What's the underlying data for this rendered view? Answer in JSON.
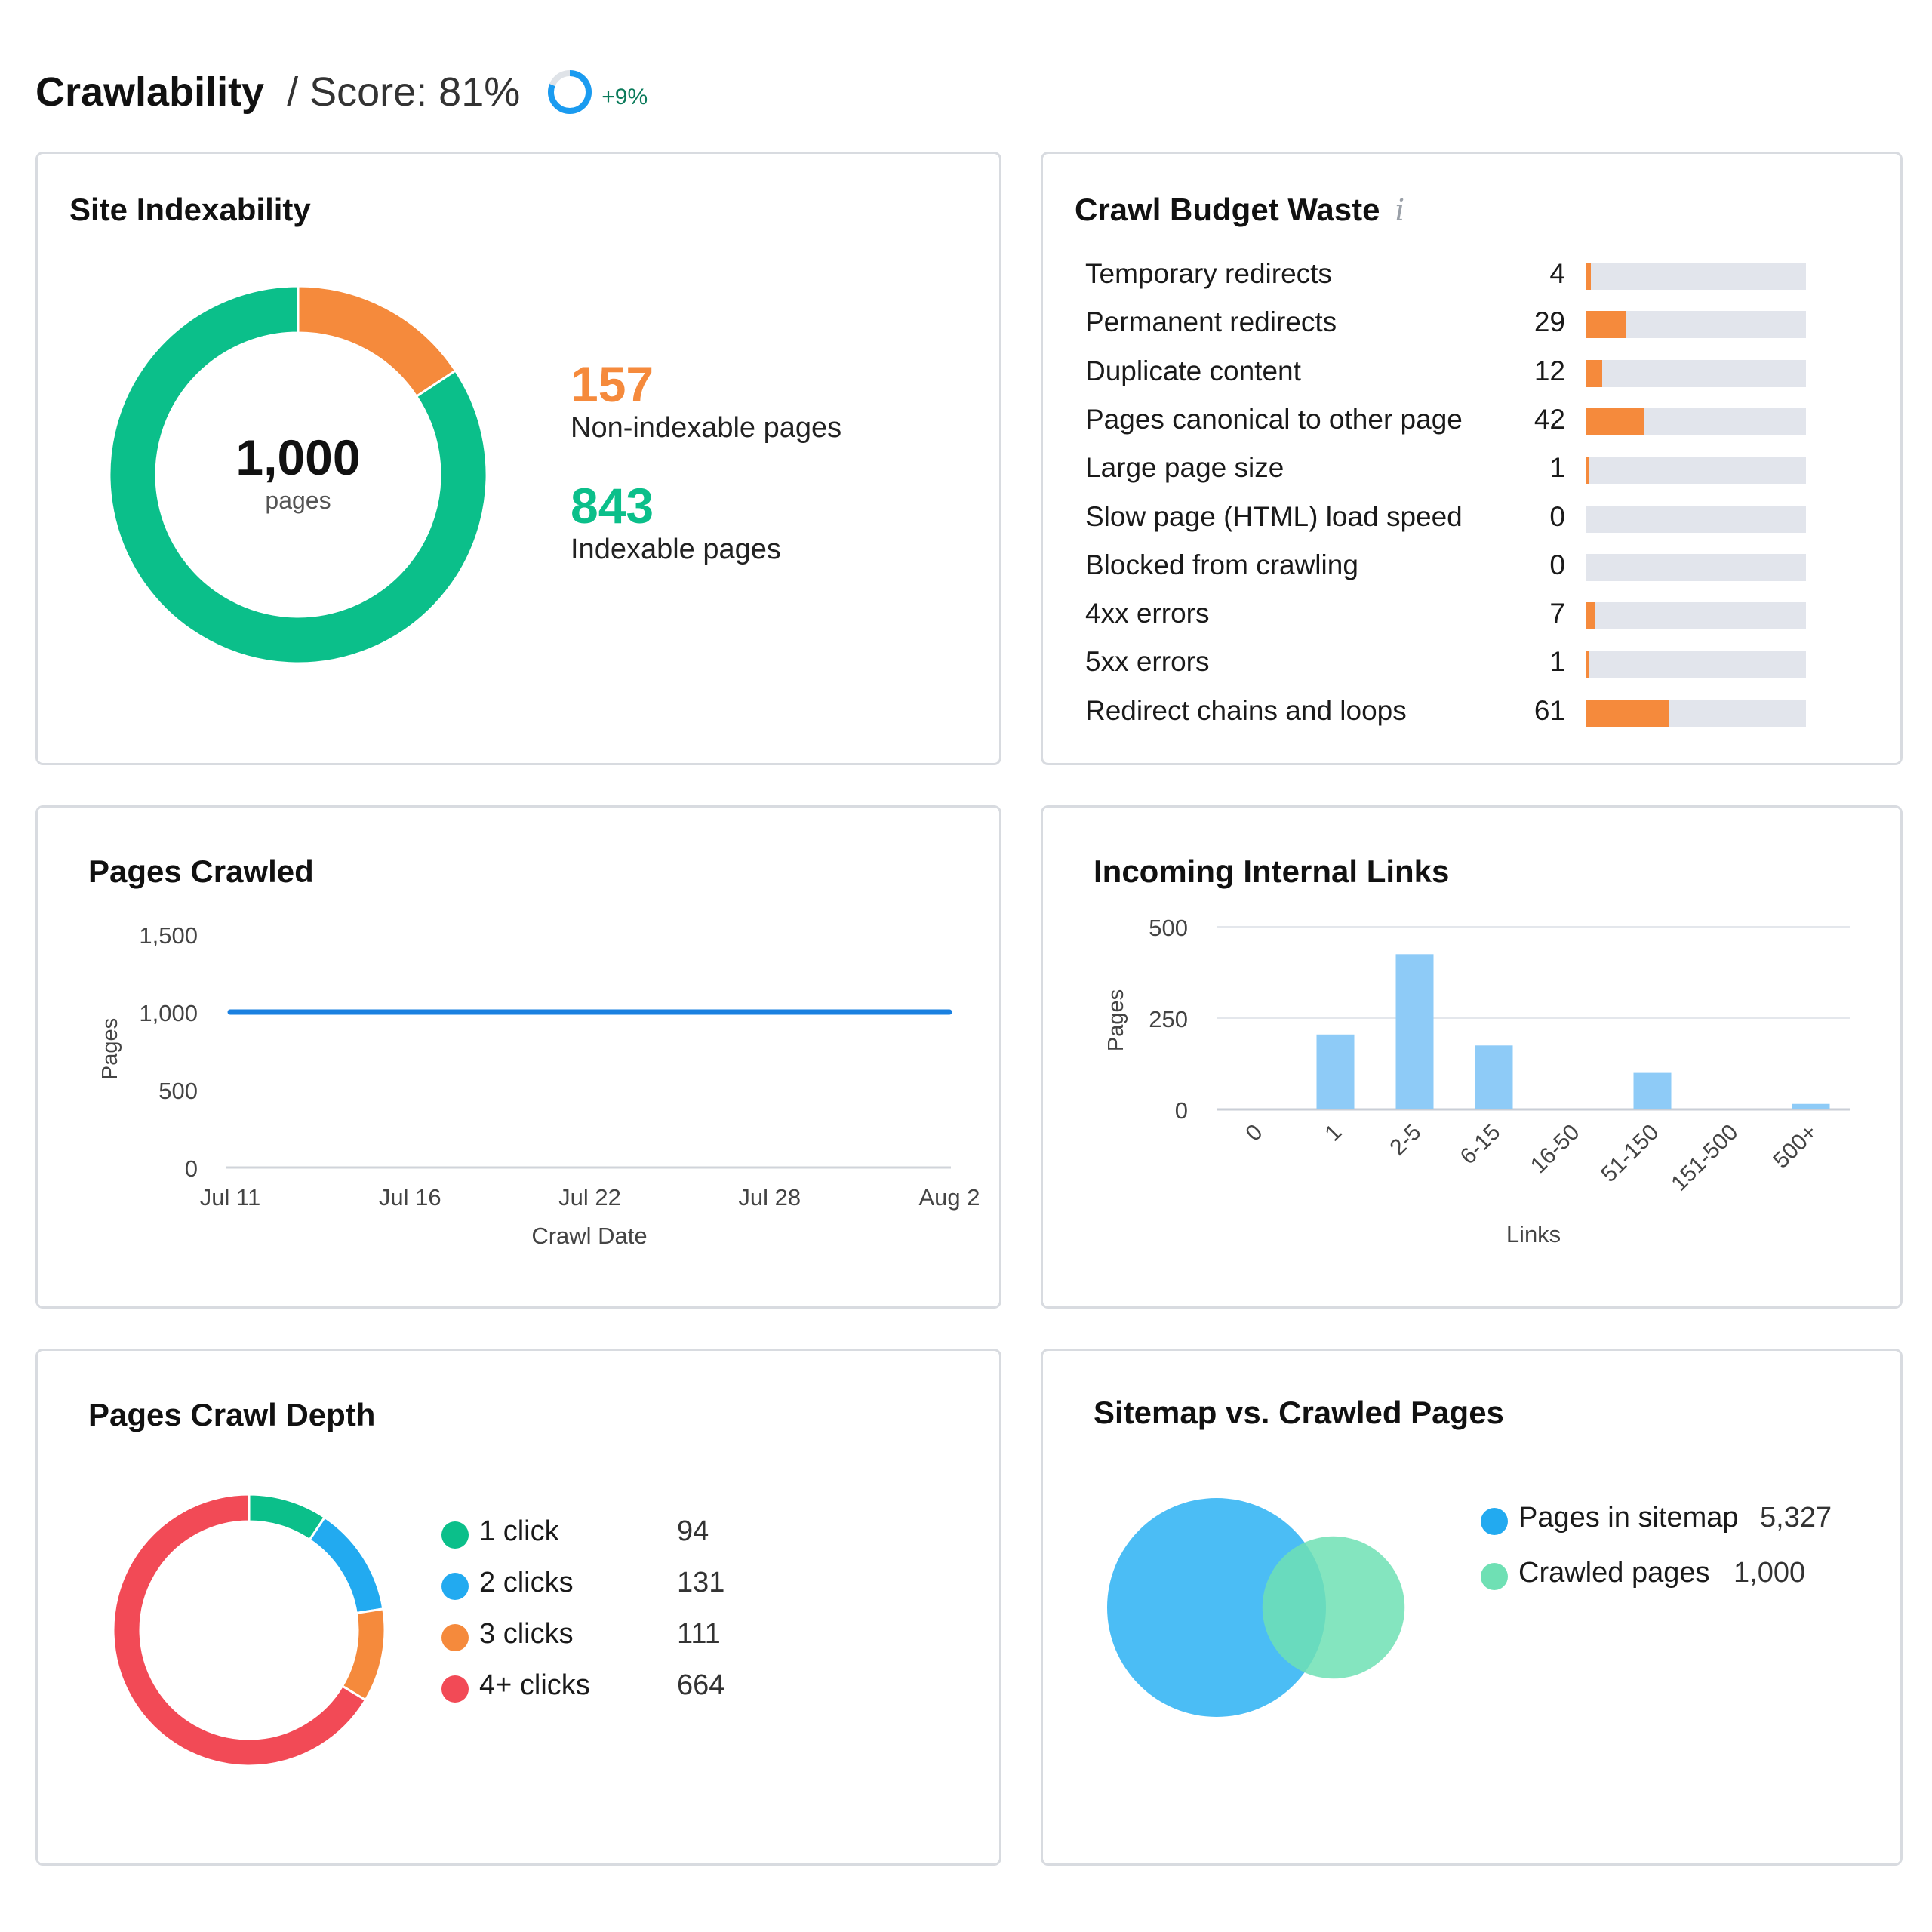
{
  "header": {
    "title": "Crawlability",
    "score_text": "/ Score: 81%",
    "score_value": 81,
    "delta": "+9%",
    "ring_color": "#1a9bf0"
  },
  "site_indexability": {
    "title": "Site Indexability",
    "total": "1,000",
    "total_unit": "pages",
    "non_indexable": {
      "value": "157",
      "label": "Non-indexable pages",
      "color": "#f58a3c"
    },
    "indexable": {
      "value": "843",
      "label": "Indexable pages",
      "color": "#0bbf8a"
    }
  },
  "crawl_budget_waste": {
    "title": "Crawl Budget Waste",
    "info_icon": "info-icon",
    "bar_color": "#f58a3c",
    "track_color": "#e2e5ec",
    "max": 160,
    "items": [
      {
        "label": "Temporary redirects",
        "value": 4
      },
      {
        "label": "Permanent redirects",
        "value": 29
      },
      {
        "label": "Duplicate content",
        "value": 12
      },
      {
        "label": "Pages canonical to other page",
        "value": 42
      },
      {
        "label": "Large page size",
        "value": 1
      },
      {
        "label": "Slow page (HTML) load speed",
        "value": 0
      },
      {
        "label": "Blocked from crawling",
        "value": 0
      },
      {
        "label": "4xx errors",
        "value": 7
      },
      {
        "label": "5xx errors",
        "value": 1
      },
      {
        "label": "Redirect chains and loops",
        "value": 61
      }
    ]
  },
  "pages_crawled": {
    "title": "Pages Crawled"
  },
  "incoming_internal_links": {
    "title": "Incoming Internal Links"
  },
  "pages_crawl_depth": {
    "title": "Pages Crawl Depth"
  },
  "sitemap_vs_crawled": {
    "title": "Sitemap vs. Crawled Pages"
  },
  "chart_data": [
    {
      "type": "pie",
      "id": "site-indexability-donut",
      "categories": [
        "Non-indexable pages",
        "Indexable pages"
      ],
      "values": [
        157,
        843
      ],
      "colors": [
        "#f58a3c",
        "#0bbf8a"
      ]
    },
    {
      "type": "bar",
      "id": "crawl-budget-waste-bars",
      "categories": [
        "Temporary redirects",
        "Permanent redirects",
        "Duplicate content",
        "Pages canonical to other page",
        "Large page size",
        "Slow page (HTML) load speed",
        "Blocked from crawling",
        "4xx errors",
        "5xx errors",
        "Redirect chains and loops"
      ],
      "values": [
        4,
        29,
        12,
        42,
        1,
        0,
        0,
        7,
        1,
        61
      ]
    },
    {
      "type": "line",
      "id": "pages-crawled-line",
      "x": [
        "Jul 11",
        "Aug 2"
      ],
      "xticks": [
        "Jul 11",
        "Jul 16",
        "Jul 22",
        "Jul 28",
        "Aug 2"
      ],
      "series": [
        {
          "values": [
            1000,
            1000
          ]
        }
      ],
      "xlabel": "Crawl Date",
      "ylabel": "Pages",
      "yticks": [
        "0",
        "500",
        "1,000",
        "1,500"
      ],
      "yticks_values": [
        0,
        500,
        1000,
        1500
      ],
      "ylim": [
        0,
        1500
      ],
      "grid": false,
      "line_color": "#1a80e0"
    },
    {
      "type": "bar",
      "id": "incoming-internal-links-bars",
      "categories": [
        "0",
        "1",
        "2-5",
        "6-15",
        "16-50",
        "51-150",
        "151-500",
        "500+"
      ],
      "values": [
        0,
        205,
        425,
        175,
        0,
        100,
        0,
        15
      ],
      "xlabel": "Links",
      "ylabel": "Pages",
      "yticks": [
        "0",
        "250",
        "500"
      ],
      "yticks_values": [
        0,
        250,
        500
      ],
      "ylim": [
        0,
        500
      ],
      "grid": true,
      "bar_color": "#8ecbf7"
    },
    {
      "type": "pie",
      "id": "pages-crawl-depth-donut",
      "categories": [
        "1 click",
        "2 clicks",
        "3 clicks",
        "4+ clicks"
      ],
      "values": [
        94,
        131,
        111,
        664
      ],
      "colors": [
        "#0bbf8a",
        "#22aaf0",
        "#f58a3c",
        "#f24a56"
      ]
    },
    {
      "type": "venn",
      "id": "sitemap-vs-crawled-venn",
      "categories": [
        "Pages in sitemap",
        "Crawled pages"
      ],
      "labels_values": [
        "5,327",
        "1,000"
      ],
      "values": [
        5327,
        1000
      ],
      "colors": [
        "#4bbdf5",
        "#6fe0b4"
      ]
    }
  ]
}
